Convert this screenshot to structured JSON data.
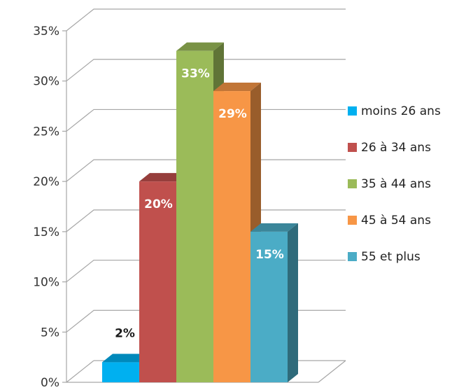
{
  "chart_data": {
    "type": "bar",
    "style": "3d-column",
    "categories": [
      "moins 26 ans",
      "26 à 34 ans",
      "35 à 44 ans",
      "45 à 54 ans",
      "55 et plus"
    ],
    "values": [
      2,
      20,
      33,
      29,
      15
    ],
    "value_labels": [
      "2%",
      "20%",
      "33%",
      "29%",
      "15%"
    ],
    "colors": [
      "#00b0f0",
      "#c0504d",
      "#9bbb59",
      "#f79646",
      "#4bacc6"
    ],
    "label_colors": [
      "#1a1a1a",
      "#ffffff",
      "#ffffff",
      "#ffffff",
      "#ffffff"
    ],
    "ylim": [
      0,
      35
    ],
    "yticks": [
      0,
      5,
      10,
      15,
      20,
      25,
      30,
      35
    ],
    "ytick_labels": [
      "0%",
      "5%",
      "10%",
      "15%",
      "20%",
      "25%",
      "30%",
      "35%"
    ],
    "grid": true,
    "legend_position": "right",
    "legend": [
      "moins 26 ans",
      "26 à 34 ans",
      "35 à 44 ans",
      " 45 à 54 ans",
      "55 et plus"
    ],
    "title": "",
    "xlabel": "",
    "ylabel": ""
  }
}
